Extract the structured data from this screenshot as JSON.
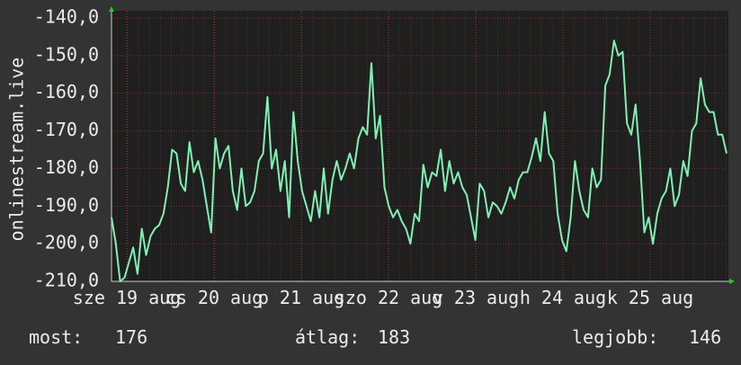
{
  "chart_data": {
    "type": "line",
    "ylabel": "onlinestream.live",
    "ylim": [
      -210,
      -140
    ],
    "yticks": [
      {
        "value": -140,
        "label": "-140,0"
      },
      {
        "value": -150,
        "label": "-150,0"
      },
      {
        "value": -160,
        "label": "-160,0"
      },
      {
        "value": -170,
        "label": "-170,0"
      },
      {
        "value": -180,
        "label": "-180,0"
      },
      {
        "value": -190,
        "label": "-190,0"
      },
      {
        "value": -200,
        "label": "-200,0"
      },
      {
        "value": -210,
        "label": "-210,0"
      }
    ],
    "xtick_labels": [
      "sze 19 aug",
      "cs 20 aug",
      "p 21 aug",
      "szo 22 aug",
      "v 23 aug",
      "h 24 aug",
      "k 25 aug"
    ],
    "grid": true,
    "series": [
      {
        "name": "onlinestream.live",
        "color": "#7ff2b4",
        "values": [
          -193,
          -200,
          -210,
          -209,
          -205,
          -201,
          -208,
          -196,
          -203,
          -198,
          -196,
          -195,
          -192,
          -185,
          -175,
          -176,
          -184,
          -186,
          -173,
          -181,
          -178,
          -183,
          -190,
          -197,
          -172,
          -180,
          -176,
          -174,
          -186,
          -191,
          -180,
          -190,
          -189,
          -186,
          -178,
          -176,
          -161,
          -180,
          -175,
          -186,
          -178,
          -193,
          -165,
          -178,
          -186,
          -190,
          -194,
          -186,
          -193,
          -180,
          -192,
          -183,
          -178,
          -183,
          -180,
          -176,
          -180,
          -172,
          -169,
          -171,
          -152,
          -172,
          -166,
          -185,
          -190,
          -193,
          -191,
          -194,
          -196,
          -200,
          -192,
          -194,
          -179,
          -185,
          -181,
          -182,
          -175,
          -186,
          -178,
          -184,
          -181,
          -185,
          -187,
          -193,
          -199,
          -184,
          -186,
          -193,
          -189,
          -190,
          -192,
          -189,
          -185,
          -188,
          -183,
          -181,
          -181,
          -177,
          -172,
          -178,
          -165,
          -176,
          -178,
          -192,
          -199,
          -202,
          -193,
          -178,
          -186,
          -191,
          -193,
          -180,
          -185,
          -183,
          -158,
          -155,
          -146,
          -150,
          -149,
          -168,
          -171,
          -163,
          -178,
          -197,
          -193,
          -200,
          -192,
          -188,
          -186,
          -180,
          -190,
          -187,
          -178,
          -182,
          -170,
          -168,
          -156,
          -163,
          -165,
          -165,
          -171,
          -171,
          -176
        ]
      }
    ],
    "stats": [
      {
        "label": "most:",
        "value": 176
      },
      {
        "label": "átlag:",
        "value": 183
      },
      {
        "label": "legjobb:",
        "value": 146
      }
    ]
  }
}
